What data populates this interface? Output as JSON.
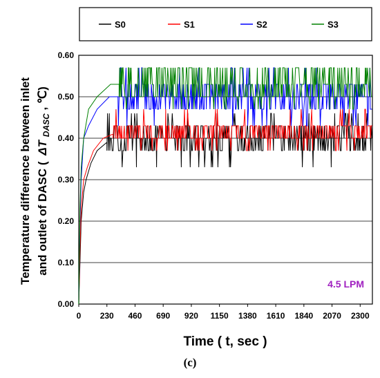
{
  "chart_data": {
    "type": "line",
    "xlabel": "Time ( t, sec )",
    "ylabel_line1": "Temperature difference between inlet",
    "ylabel_line2_prefix": "and outlet of DASC (",
    "ylabel_symbol": "ΔT",
    "ylabel_subscript": "DASC",
    "ylabel_suffix": ", ℃)",
    "annotation": "4.5 LPM",
    "caption": "(c)",
    "xlim": [
      0,
      2400
    ],
    "ylim": [
      0,
      0.6
    ],
    "x_ticks": [
      "0",
      "230",
      "460",
      "690",
      "920",
      "1150",
      "1380",
      "1610",
      "1840",
      "2070",
      "2300"
    ],
    "x_tick_values": [
      0,
      230,
      460,
      690,
      920,
      1150,
      1380,
      1610,
      1840,
      2070,
      2300
    ],
    "y_ticks": [
      "0.00",
      "0.10",
      "0.20",
      "0.30",
      "0.40",
      "0.50",
      "0.60"
    ],
    "y_tick_values": [
      0,
      0.1,
      0.2,
      0.3,
      0.4,
      0.5,
      0.6
    ],
    "grid": "horizontal",
    "legend_position": "top",
    "series": [
      {
        "name": "S0",
        "color": "#000000",
        "rise": [
          [
            0,
            0
          ],
          [
            10,
            0.1
          ],
          [
            20,
            0.2
          ],
          [
            40,
            0.27
          ],
          [
            60,
            0.3
          ],
          [
            100,
            0.34
          ],
          [
            150,
            0.37
          ],
          [
            230,
            0.39
          ]
        ],
        "levels": [
          0.37,
          0.4,
          0.43
        ],
        "base": 0.4,
        "spike_lo": 0.33,
        "spike_hi": 0.46,
        "seed": 11
      },
      {
        "name": "S1",
        "color": "#ff0000",
        "rise": [
          [
            0,
            0
          ],
          [
            10,
            0.13
          ],
          [
            20,
            0.23
          ],
          [
            40,
            0.3
          ],
          [
            70,
            0.33
          ],
          [
            120,
            0.37
          ],
          [
            200,
            0.4
          ],
          [
            280,
            0.41
          ]
        ],
        "levels": [
          0.4,
          0.43
        ],
        "base": 0.41,
        "spike_lo": 0.37,
        "spike_hi": 0.47,
        "seed": 23
      },
      {
        "name": "S2",
        "color": "#0000ff",
        "rise": [
          [
            0,
            0
          ],
          [
            10,
            0.2
          ],
          [
            20,
            0.3
          ],
          [
            40,
            0.4
          ],
          [
            80,
            0.43
          ],
          [
            150,
            0.47
          ],
          [
            250,
            0.5
          ],
          [
            320,
            0.5
          ]
        ],
        "levels": [
          0.47,
          0.5,
          0.53
        ],
        "base": 0.51,
        "spike_lo": 0.43,
        "spike_hi": 0.57,
        "seed": 37
      },
      {
        "name": "S3",
        "color": "#008000",
        "rise": [
          [
            0,
            0
          ],
          [
            10,
            0.23
          ],
          [
            20,
            0.33
          ],
          [
            40,
            0.4
          ],
          [
            80,
            0.47
          ],
          [
            150,
            0.5
          ],
          [
            260,
            0.53
          ],
          [
            330,
            0.53
          ]
        ],
        "levels": [
          0.5,
          0.53,
          0.57
        ],
        "base": 0.53,
        "spike_lo": 0.47,
        "spike_hi": 0.57,
        "seed": 53
      }
    ]
  }
}
